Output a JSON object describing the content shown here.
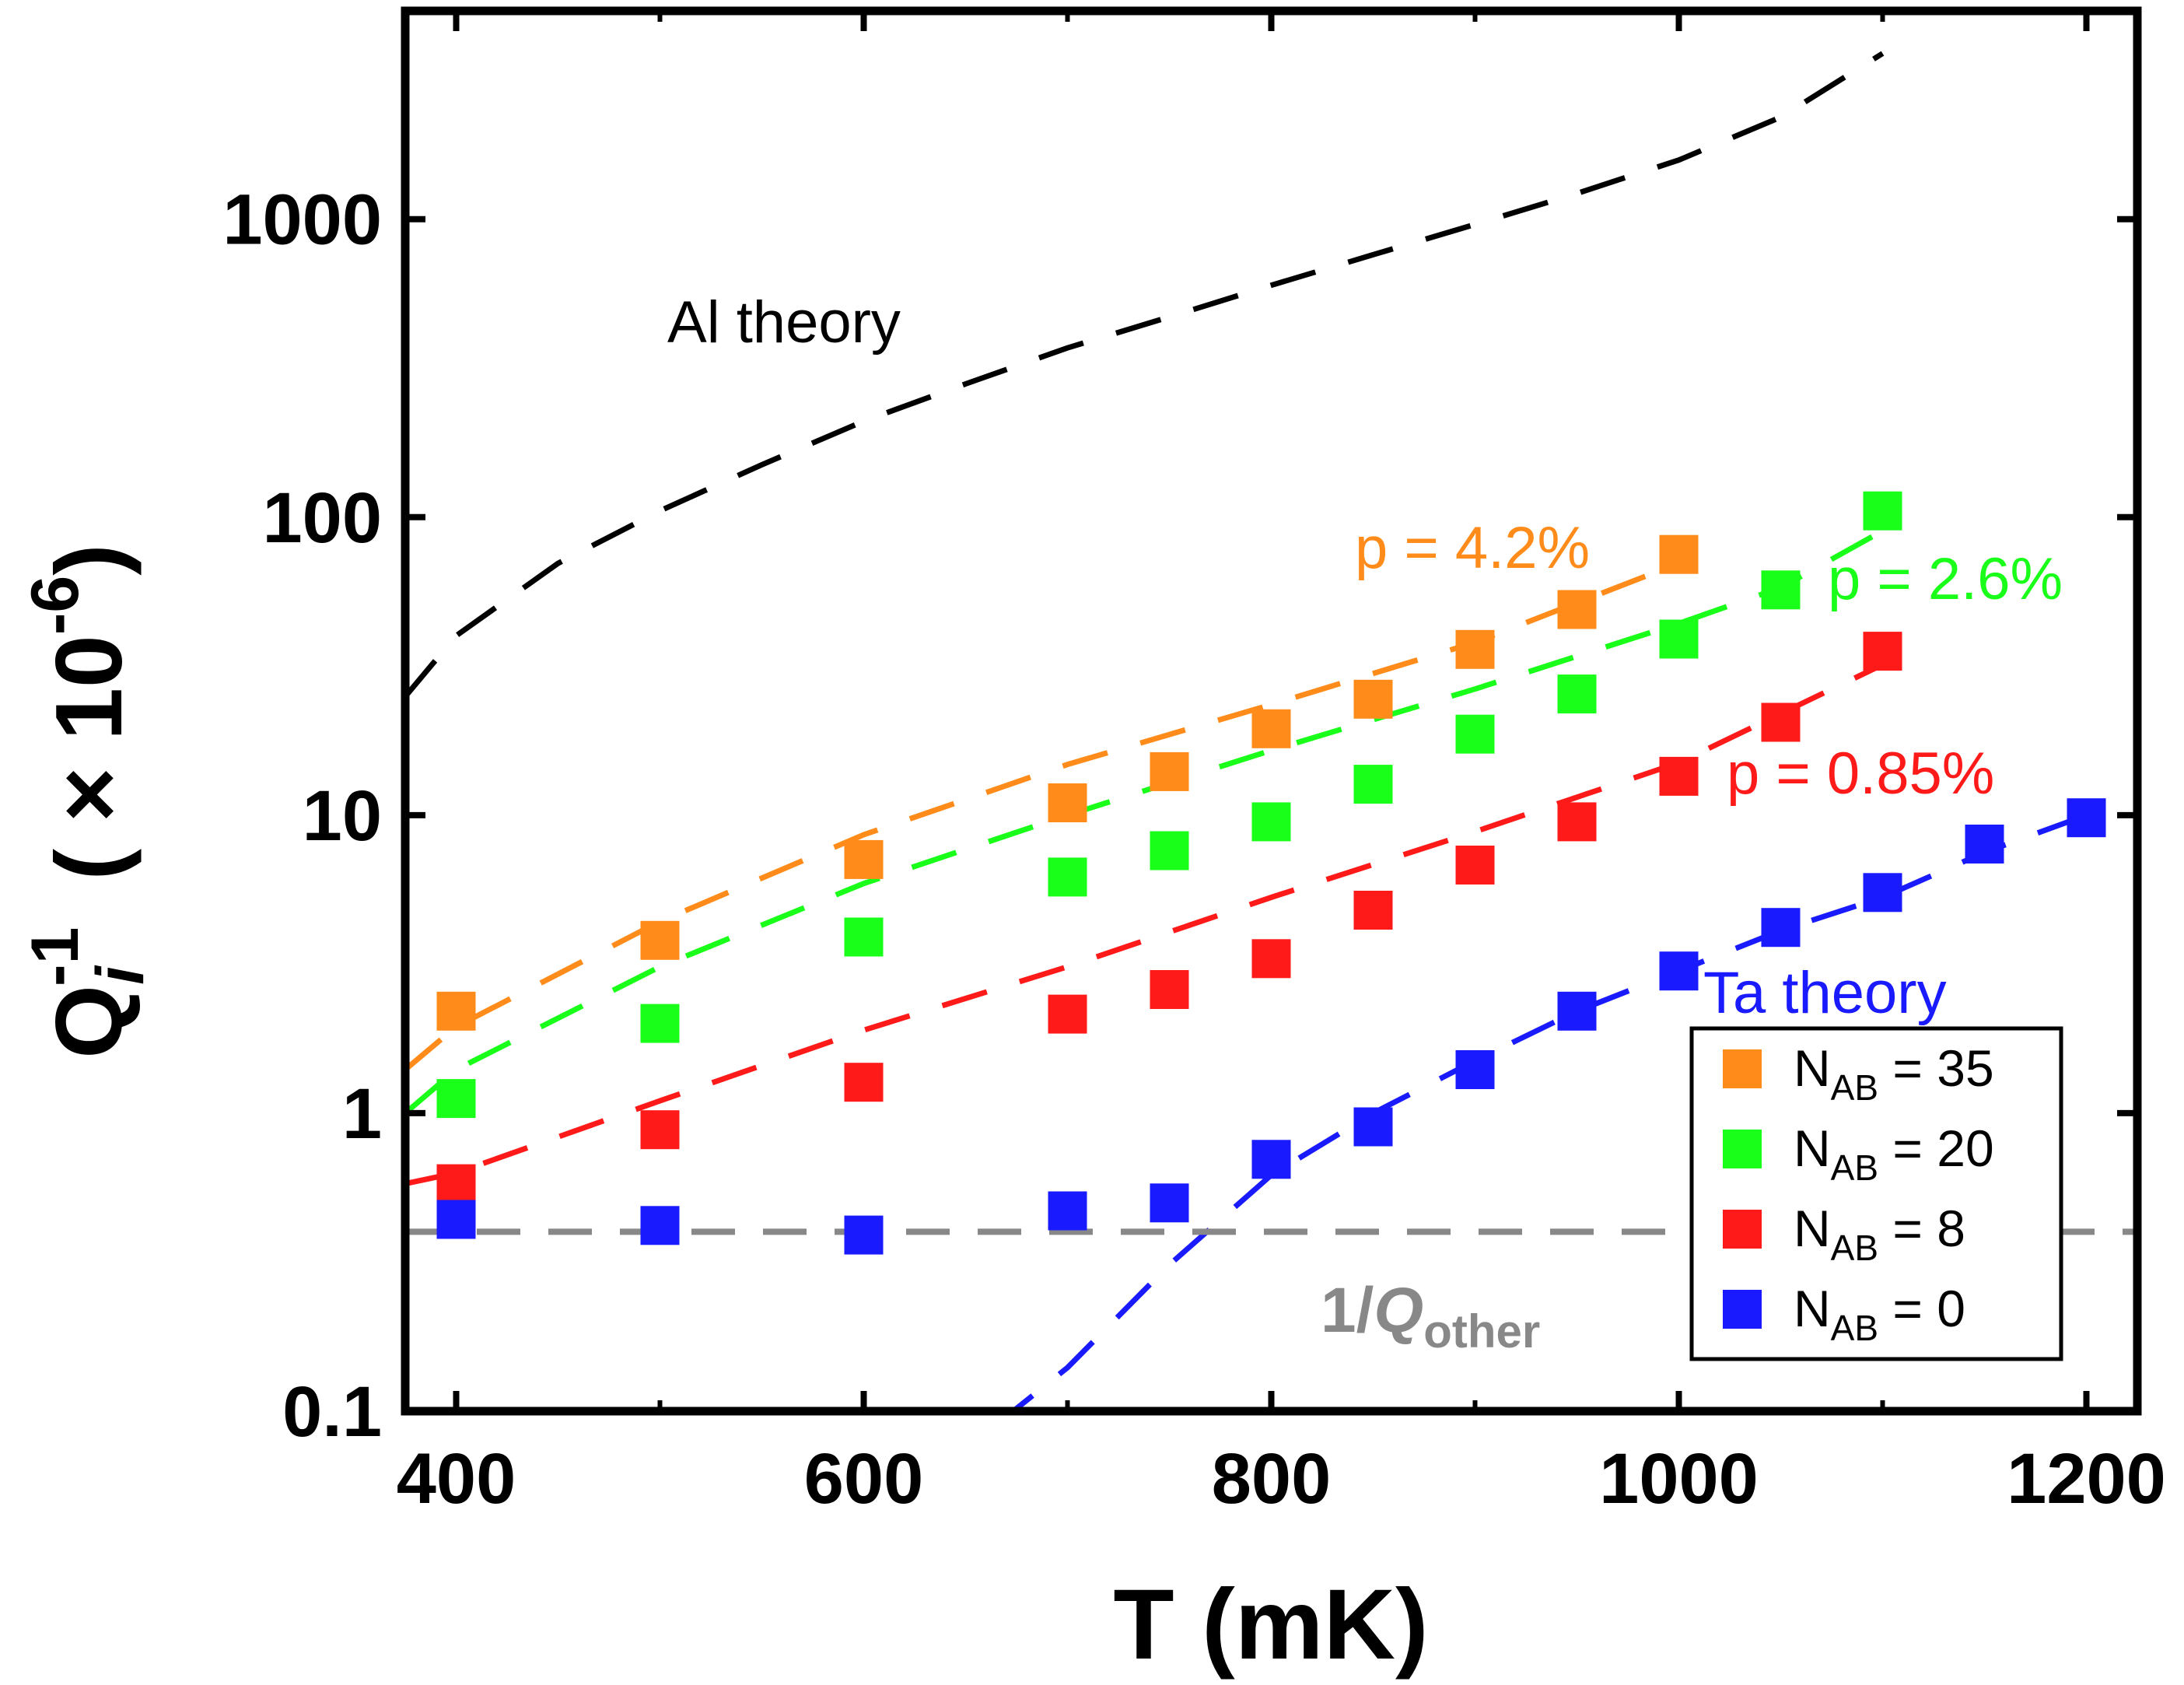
{
  "chart_data": {
    "type": "scatter",
    "xlabel": "T (mK)",
    "ylabel": "Q_i^-1 ( × 10^-6)",
    "ylabel_parts": {
      "base": "Q",
      "subscript": "i",
      "superscript": "-1",
      "unit_open": "( × 10",
      "unit_exp": "-6",
      "unit_close": ")"
    },
    "xlim": [
      375,
      1225
    ],
    "ylim": [
      0.1,
      5000
    ],
    "yscale": "log",
    "xticks": [
      400,
      600,
      800,
      1000,
      1200
    ],
    "yticks": [
      0.1,
      1,
      10,
      100,
      1000
    ],
    "ytick_labels": [
      "0.1",
      "1",
      "10",
      "100",
      "1000"
    ],
    "series": [
      {
        "name": "N_AB = 35",
        "legend_base": "N",
        "legend_sub": "AB",
        "legend_rest": " = 35",
        "color": "#ff8c1a",
        "x": [
          400,
          500,
          600,
          700,
          750,
          800,
          850,
          900,
          950,
          1000
        ],
        "y": [
          2.2,
          3.8,
          7.1,
          11.0,
          14.0,
          19.5,
          24.5,
          36.0,
          49.0,
          75.0
        ]
      },
      {
        "name": "N_AB = 20",
        "legend_base": "N",
        "legend_sub": "AB",
        "legend_rest": " = 20",
        "color": "#1aff1a",
        "x": [
          400,
          500,
          600,
          700,
          750,
          800,
          850,
          900,
          950,
          1000,
          1050,
          1100
        ],
        "y": [
          1.12,
          2.0,
          3.9,
          6.2,
          7.6,
          9.5,
          12.7,
          18.7,
          25.5,
          39.0,
          57.0,
          105.0
        ]
      },
      {
        "name": "N_AB = 8",
        "legend_base": "N",
        "legend_sub": "AB",
        "legend_rest": " = 8",
        "color": "#ff1a1a",
        "x": [
          400,
          500,
          600,
          700,
          750,
          800,
          850,
          900,
          950,
          1000,
          1050,
          1100
        ],
        "y": [
          0.58,
          0.88,
          1.27,
          2.15,
          2.6,
          3.3,
          4.8,
          6.8,
          9.5,
          13.5,
          20.5,
          35.5
        ]
      },
      {
        "name": "N_AB = 0",
        "legend_base": "N",
        "legend_sub": "AB",
        "legend_rest": " = 0",
        "color": "#1a1aff",
        "x": [
          400,
          500,
          600,
          700,
          750,
          800,
          850,
          900,
          950,
          1000,
          1050,
          1100,
          1150,
          1200
        ],
        "y": [
          0.44,
          0.42,
          0.39,
          0.47,
          0.5,
          0.7,
          0.9,
          1.4,
          2.2,
          3.0,
          4.2,
          5.5,
          8.0,
          9.8
        ]
      }
    ],
    "theory_curves": [
      {
        "name": "Al theory",
        "color": "#000000",
        "x": [
          375,
          400,
          450,
          500,
          550,
          600,
          650,
          700,
          750,
          800,
          850,
          900,
          950,
          1000,
          1050,
          1100
        ],
        "y": [
          25,
          40,
          70,
          105,
          150,
          210,
          280,
          370,
          470,
          600,
          760,
          960,
          1220,
          1580,
          2200,
          3600
        ]
      },
      {
        "name": "p = 4.2%",
        "color": "#ff8c1a",
        "x": [
          375,
          400,
          500,
          600,
          700,
          800,
          900,
          1000
        ],
        "y": [
          1.4,
          1.95,
          4.4,
          8.6,
          14.8,
          23.5,
          38.0,
          70.0
        ]
      },
      {
        "name": "p = 2.6%",
        "color": "#1aff1a",
        "x": [
          375,
          400,
          500,
          600,
          700,
          800,
          900,
          1000,
          1050,
          1100
        ],
        "y": [
          1.0,
          1.4,
          3.1,
          5.9,
          10.0,
          16.5,
          26.5,
          44.0,
          58.0,
          90.0
        ]
      },
      {
        "name": "p = 0.85%",
        "color": "#ff1a1a",
        "x": [
          375,
          400,
          500,
          600,
          700,
          800,
          900,
          1000,
          1100
        ],
        "y": [
          0.58,
          0.63,
          1.1,
          1.9,
          3.1,
          5.3,
          8.8,
          15.0,
          32.0
        ]
      },
      {
        "name": "Ta theory",
        "color": "#1a1aff",
        "x": [
          665,
          700,
          750,
          800,
          850,
          900,
          950,
          1000,
          1050,
          1100,
          1150,
          1200
        ],
        "y": [
          0.09,
          0.14,
          0.31,
          0.62,
          1.0,
          1.5,
          2.2,
          3.0,
          4.1,
          5.3,
          7.5,
          10.0
        ]
      },
      {
        "name": "1/Q_other",
        "color": "#888888",
        "x": [
          375,
          1225
        ],
        "y": [
          0.4,
          0.4
        ]
      }
    ],
    "annotations": {
      "al_theory": "Al theory",
      "ta_theory": "Ta theory",
      "p42": "p = 4.2%",
      "p26": "p = 2.6%",
      "p085": "p = 0.85%",
      "qother_prefix": "1/",
      "qother_q": "Q",
      "qother_sub": "other"
    },
    "legend_position": "bottom-right"
  }
}
